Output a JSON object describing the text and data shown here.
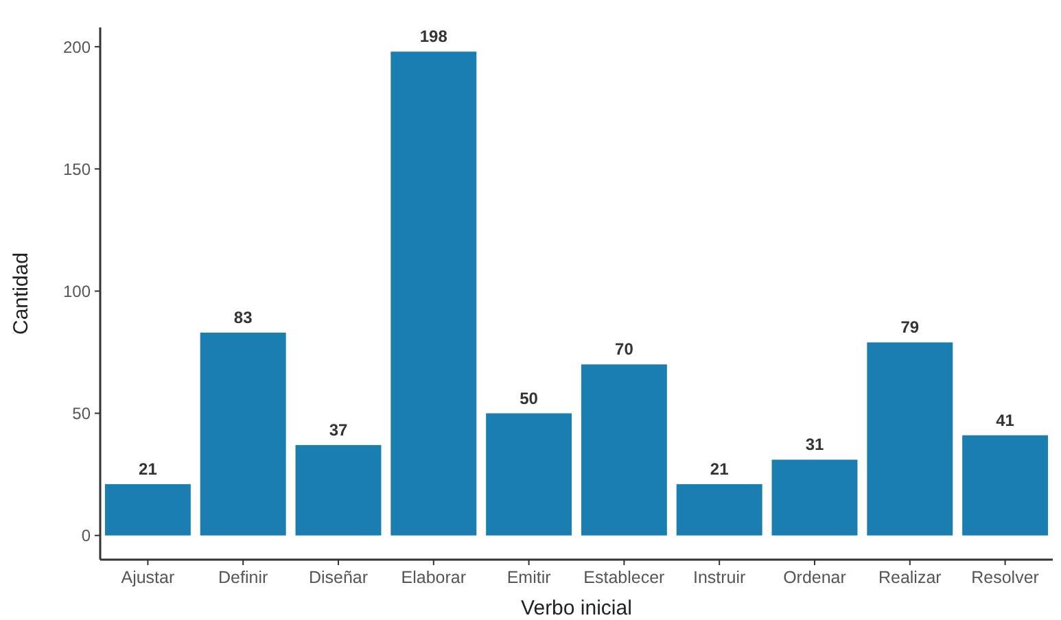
{
  "chart_data": {
    "type": "bar",
    "xlabel": "Verbo inicial",
    "ylabel": "Cantidad",
    "categories": [
      "Ajustar",
      "Definir",
      "Diseñar",
      "Elaborar",
      "Emitir",
      "Establecer",
      "Instruir",
      "Ordenar",
      "Realizar",
      "Resolver"
    ],
    "values": [
      21,
      83,
      37,
      198,
      50,
      70,
      21,
      31,
      79,
      41
    ],
    "color": "#1a7fb0",
    "data_labels": true,
    "grid": false,
    "ylim": [
      -9.9,
      207.9
    ],
    "yticks": [
      0,
      50,
      100,
      150,
      200
    ]
  }
}
